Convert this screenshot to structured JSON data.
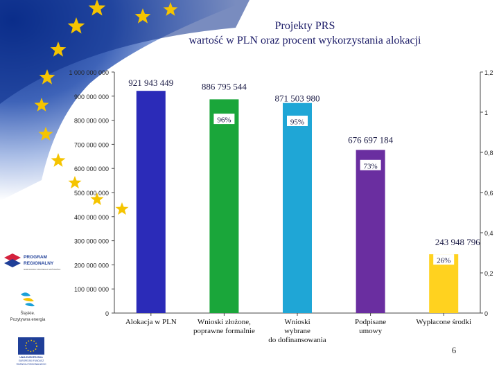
{
  "slide": {
    "title_line1": "Projekty PRS",
    "title_line2": "wartość w PLN oraz procent wykorzystania alokacji",
    "page_number": "6",
    "colors": {
      "eu_blue": "#1f3f98",
      "star_yellow": "#f5c400",
      "background": "#ffffff"
    }
  },
  "logos": {
    "program_regionalny": {
      "line1": "PROGRAM",
      "line2": "REGIONALNY",
      "line3": "NARODOWA STRATEGIA SPÓJNOŚCI"
    },
    "slaskie": {
      "line1": "Śląskie.",
      "line2": "Pozytywna energia"
    },
    "ue": {
      "line1": "UNIA EUROPEJSKA",
      "line2": "EUROPEJSKI FUNDUSZ",
      "line3": "ROZWOJU REGIONALNEGO"
    }
  },
  "chart_data": {
    "type": "bar",
    "title": "",
    "categories": [
      "Alokacja w PLN",
      "Wnioski złożone, poprawne formalnie",
      "Wnioski wybrane do dofinansowania",
      "Podpisane umowy",
      "Wypłacone środki"
    ],
    "category_lines": [
      [
        "Alokacja w PLN"
      ],
      [
        "Wnioski złożone,",
        "poprawne formalnie"
      ],
      [
        "Wnioski",
        "wybrane",
        "do dofinansowania"
      ],
      [
        "Podpisane",
        "umowy"
      ],
      [
        "Wypłacone środki"
      ]
    ],
    "values": [
      921943449,
      886795544,
      871503980,
      676697184,
      243948796
    ],
    "value_labels": [
      "921 943 449",
      "886 795 544",
      "871 503 980",
      "676 697 184",
      "243 948 796"
    ],
    "percent_labels": [
      "",
      "96%",
      "95%",
      "73%",
      "26%"
    ],
    "colors": [
      "#2b2bb8",
      "#1aa63a",
      "#1fa6d6",
      "#6a2ea0",
      "#ffd21f"
    ],
    "ylim": [
      0,
      1000000000
    ],
    "yticks": [
      0,
      100000000,
      200000000,
      300000000,
      400000000,
      500000000,
      600000000,
      700000000,
      800000000,
      900000000,
      1000000000
    ],
    "ytick_labels": [
      "0",
      "100 000 000",
      "200 000 000",
      "300 000 000",
      "400 000 000",
      "500 000 000",
      "600 000 000",
      "700 000 000",
      "800 000 000",
      "900 000 000",
      "1 000 000 000"
    ],
    "y2lim": [
      0,
      1.2
    ],
    "y2ticks": [
      0,
      0.2,
      0.4,
      0.6,
      0.8,
      1,
      1.2
    ],
    "y2tick_labels": [
      "0",
      "0,2",
      "0,4",
      "0,6",
      "0,8",
      "1",
      "1,2"
    ],
    "percent_series": [
      null,
      0.96,
      0.95,
      0.73,
      0.26
    ],
    "grid": false
  }
}
